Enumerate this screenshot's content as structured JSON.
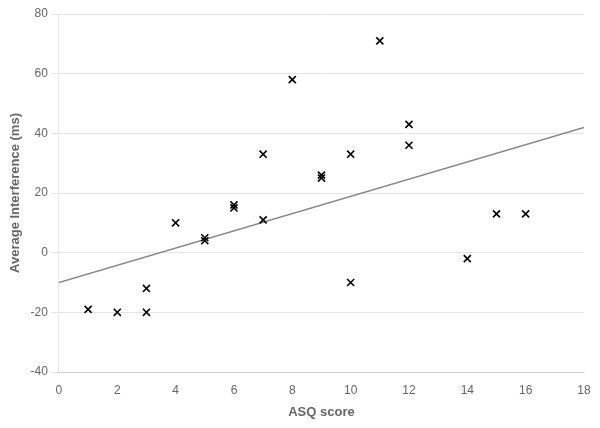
{
  "chart_data": {
    "type": "scatter",
    "xlabel": "ASQ score",
    "ylabel": "Average Interference (ms)",
    "series": [
      {
        "type": "scatter",
        "marker": "x",
        "color": "#000000",
        "x": [
          1,
          2,
          3,
          3,
          4,
          5,
          5,
          6,
          6,
          7,
          7,
          8,
          9,
          9,
          10,
          10,
          11,
          12,
          12,
          14,
          15,
          16
        ],
        "values": [
          -19,
          -20,
          -12,
          -20,
          10,
          5,
          4,
          16,
          15,
          33,
          11,
          58,
          26,
          25,
          33,
          -10,
          71,
          43,
          36,
          -2,
          13,
          13
        ]
      },
      {
        "type": "line",
        "line_style": "solid",
        "color": "#888888",
        "x": [
          0,
          18
        ],
        "values": [
          -10,
          42
        ]
      }
    ],
    "xlim": [
      0,
      18
    ],
    "ylim": [
      -40,
      80
    ],
    "xticks": [
      0,
      2,
      4,
      6,
      8,
      10,
      12,
      14,
      16,
      18
    ],
    "yticks": [
      -40,
      -20,
      0,
      20,
      40,
      60,
      80
    ],
    "grid": "y"
  }
}
